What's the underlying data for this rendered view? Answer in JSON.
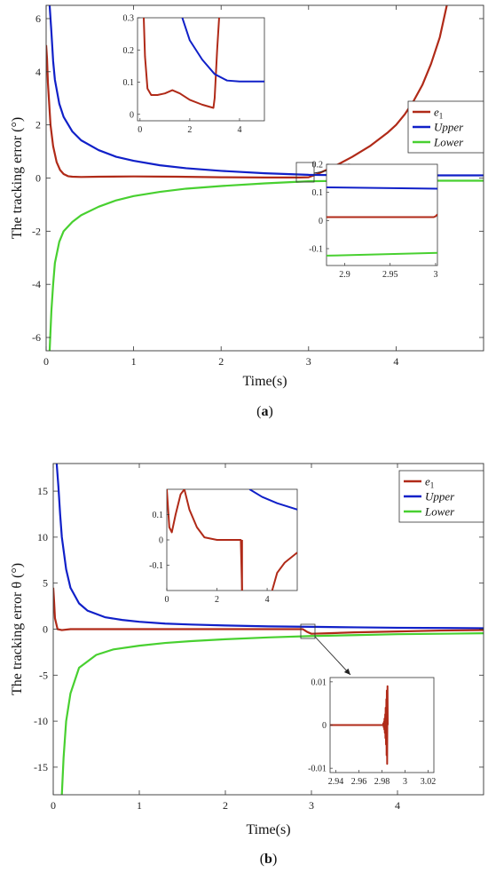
{
  "chart_data": [
    {
      "type": "line",
      "panel_label": "a",
      "xlabel": "Time(s)",
      "ylabel": "The tracking error (°)",
      "xlim": [
        0,
        5
      ],
      "ylim": [
        -6.5,
        6.5
      ],
      "xticks": [
        0,
        1,
        2,
        3,
        4
      ],
      "yticks": [
        -6,
        -4,
        -2,
        0,
        2,
        4,
        6
      ],
      "legend_position": "top-right",
      "series": [
        {
          "name": "e",
          "name_sub": "1",
          "color": "#b02a18",
          "x": [
            0.0,
            0.01,
            0.02,
            0.05,
            0.08,
            0.12,
            0.16,
            0.2,
            0.25,
            0.3,
            0.4,
            0.6,
            1.0,
            1.5,
            2.0,
            2.5,
            2.9,
            3.0,
            3.1,
            3.3,
            3.5,
            3.7,
            3.9,
            4.0,
            4.1,
            4.2,
            4.3,
            4.4,
            4.5,
            4.58
          ],
          "y": [
            5.0,
            4.5,
            3.6,
            2.0,
            1.2,
            0.6,
            0.3,
            0.15,
            0.07,
            0.05,
            0.04,
            0.05,
            0.06,
            0.05,
            0.03,
            0.02,
            0.02,
            0.03,
            0.15,
            0.45,
            0.8,
            1.2,
            1.7,
            2.0,
            2.4,
            2.9,
            3.5,
            4.3,
            5.3,
            6.5
          ]
        },
        {
          "name": "Upper",
          "color": "#1020c8",
          "x": [
            0.04,
            0.06,
            0.08,
            0.1,
            0.15,
            0.2,
            0.3,
            0.4,
            0.6,
            0.8,
            1.0,
            1.3,
            1.6,
            2.0,
            2.5,
            3.0,
            3.5,
            4.0,
            5.0
          ],
          "y": [
            6.5,
            5.5,
            4.4,
            3.7,
            2.8,
            2.3,
            1.75,
            1.42,
            1.05,
            0.8,
            0.65,
            0.48,
            0.37,
            0.27,
            0.18,
            0.12,
            0.1,
            0.1,
            0.1
          ]
        },
        {
          "name": "Lower",
          "color": "#48d030",
          "x": [
            0.04,
            0.06,
            0.08,
            0.1,
            0.15,
            0.2,
            0.3,
            0.4,
            0.6,
            0.8,
            1.0,
            1.3,
            1.6,
            2.0,
            2.5,
            3.0,
            3.5,
            4.0,
            5.0
          ],
          "y": [
            -6.5,
            -5.0,
            -4.0,
            -3.2,
            -2.4,
            -2.0,
            -1.65,
            -1.4,
            -1.08,
            -0.84,
            -0.68,
            -0.52,
            -0.4,
            -0.3,
            -0.2,
            -0.12,
            -0.1,
            -0.1,
            -0.1
          ]
        }
      ],
      "insets": [
        {
          "name": "inset-top",
          "xlim": [
            -0.1,
            5
          ],
          "ylim": [
            -0.02,
            0.3
          ],
          "xticks": [
            0,
            2,
            4
          ],
          "yticks": [
            0,
            0.1,
            0.2,
            0.3
          ],
          "series": [
            {
              "color": "#b02a18",
              "x": [
                0.15,
                0.2,
                0.3,
                0.45,
                0.7,
                1.0,
                1.3,
                1.6,
                2.0,
                2.5,
                2.95,
                3.0,
                3.1,
                3.18
              ],
              "y": [
                0.3,
                0.18,
                0.08,
                0.06,
                0.06,
                0.065,
                0.075,
                0.065,
                0.045,
                0.03,
                0.02,
                0.05,
                0.2,
                0.3
              ]
            },
            {
              "color": "#1020c8",
              "x": [
                1.7,
                2.0,
                2.5,
                3.0,
                3.5,
                4.0,
                5.0
              ],
              "y": [
                0.3,
                0.23,
                0.17,
                0.125,
                0.105,
                0.102,
                0.102
              ]
            }
          ]
        },
        {
          "name": "inset-bottom",
          "xlim": [
            2.88,
            3.002
          ],
          "ylim": [
            -0.16,
            0.2
          ],
          "xticks": [
            2.9,
            2.95,
            3
          ],
          "yticks": [
            -0.1,
            0,
            0.1,
            0.2
          ],
          "series": [
            {
              "color": "#1020c8",
              "x": [
                2.88,
                3.002
              ],
              "y": [
                0.118,
                0.113
              ]
            },
            {
              "color": "#b02a18",
              "x": [
                2.88,
                2.998,
                3.0,
                3.002
              ],
              "y": [
                0.012,
                0.012,
                0.015,
                0.022
              ]
            },
            {
              "color": "#48d030",
              "x": [
                2.88,
                3.002
              ],
              "y": [
                -0.125,
                -0.115
              ]
            }
          ]
        }
      ]
    },
    {
      "type": "line",
      "panel_label": "b",
      "xlabel": "Time(s)",
      "ylabel": "The tracking error θ (°)",
      "xlim": [
        0,
        5
      ],
      "ylim": [
        -18,
        18
      ],
      "xticks": [
        0,
        1,
        2,
        3,
        4
      ],
      "yticks": [
        -15,
        -10,
        -5,
        0,
        5,
        10,
        15
      ],
      "legend_position": "top-right",
      "series": [
        {
          "name": "e",
          "name_sub": "1",
          "color": "#b02a18",
          "x": [
            0.0,
            0.01,
            0.02,
            0.05,
            0.1,
            0.2,
            0.5,
            1.0,
            1.5,
            2.0,
            2.5,
            2.9,
            2.95,
            3.0,
            3.2,
            3.5,
            4.0,
            4.5,
            5.0
          ],
          "y": [
            4.5,
            3.0,
            1.2,
            0.0,
            -0.1,
            0.0,
            0.0,
            0.0,
            0.0,
            0.0,
            0.0,
            0.0,
            -0.3,
            -0.5,
            -0.45,
            -0.35,
            -0.25,
            -0.15,
            -0.1
          ]
        },
        {
          "name": "Upper",
          "color": "#1020c8",
          "x": [
            0.04,
            0.06,
            0.08,
            0.1,
            0.15,
            0.2,
            0.3,
            0.4,
            0.6,
            0.8,
            1.0,
            1.3,
            1.6,
            2.0,
            2.5,
            3.0,
            3.5,
            4.0,
            5.0
          ],
          "y": [
            18.0,
            15.5,
            12.5,
            10.0,
            6.5,
            4.5,
            2.8,
            2.0,
            1.3,
            1.0,
            0.8,
            0.6,
            0.5,
            0.4,
            0.3,
            0.25,
            0.2,
            0.15,
            0.1
          ]
        },
        {
          "name": "Lower",
          "color": "#48d030",
          "x": [
            0.1,
            0.12,
            0.15,
            0.2,
            0.3,
            0.5,
            0.7,
            1.0,
            1.3,
            1.6,
            2.0,
            2.5,
            3.0,
            3.5,
            4.0,
            5.0
          ],
          "y": [
            -18.0,
            -14.0,
            -10.0,
            -7.0,
            -4.2,
            -2.8,
            -2.2,
            -1.8,
            -1.5,
            -1.3,
            -1.1,
            -0.9,
            -0.75,
            -0.65,
            -0.55,
            -0.45
          ]
        }
      ],
      "insets": [
        {
          "name": "inset-top",
          "xlim": [
            0,
            5.2
          ],
          "ylim": [
            -0.2,
            0.2
          ],
          "xticks": [
            0,
            2,
            4
          ],
          "yticks": [
            -0.1,
            0,
            0.1
          ],
          "series": [
            {
              "color": "#b02a18",
              "x": [
                0.0,
                0.1,
                0.2,
                0.35,
                0.55,
                0.7,
                0.9,
                1.2,
                1.5,
                2.0,
                2.5,
                2.95,
                3.0
              ],
              "y": [
                0.2,
                0.05,
                0.03,
                0.1,
                0.18,
                0.2,
                0.12,
                0.05,
                0.01,
                0.0,
                0.0,
                0.0,
                -0.2
              ]
            },
            {
              "color": "#b02a18",
              "x": [
                3.0,
                3.0
              ],
              "y": [
                0.0,
                -0.2
              ]
            },
            {
              "color": "#b02a18",
              "x": [
                4.2,
                4.4,
                4.7,
                5.2
              ],
              "y": [
                -0.2,
                -0.13,
                -0.09,
                -0.05
              ]
            },
            {
              "color": "#1020c8",
              "x": [
                3.3,
                3.8,
                4.4,
                5.2
              ],
              "y": [
                0.2,
                0.17,
                0.145,
                0.12
              ]
            }
          ]
        },
        {
          "name": "inset-bottom",
          "xlim": [
            2.935,
            3.025
          ],
          "ylim": [
            -0.011,
            0.011
          ],
          "xticks": [
            2.94,
            2.96,
            2.98,
            3,
            3.02
          ],
          "yticks": [
            -0.01,
            0,
            0.01
          ],
          "series": [
            {
              "color": "#b02a18",
              "x": [
                2.935,
                2.981
              ],
              "y": [
                0.0,
                0.0
              ]
            },
            {
              "color": "#b02a18",
              "x": [
                2.981,
                2.9812,
                2.9815,
                2.9818,
                2.982,
                2.9822,
                2.9825,
                2.9828,
                2.983,
                2.9832,
                2.9835,
                2.9838,
                2.984,
                2.9842,
                2.9845,
                2.9848,
                2.985
              ],
              "y": [
                0.0,
                0.0004,
                -0.0005,
                0.0008,
                -0.001,
                0.0015,
                -0.0018,
                0.0025,
                -0.003,
                0.004,
                -0.0045,
                0.006,
                -0.007,
                0.008,
                -0.009,
                0.009,
                0.0
              ]
            }
          ]
        }
      ]
    }
  ]
}
